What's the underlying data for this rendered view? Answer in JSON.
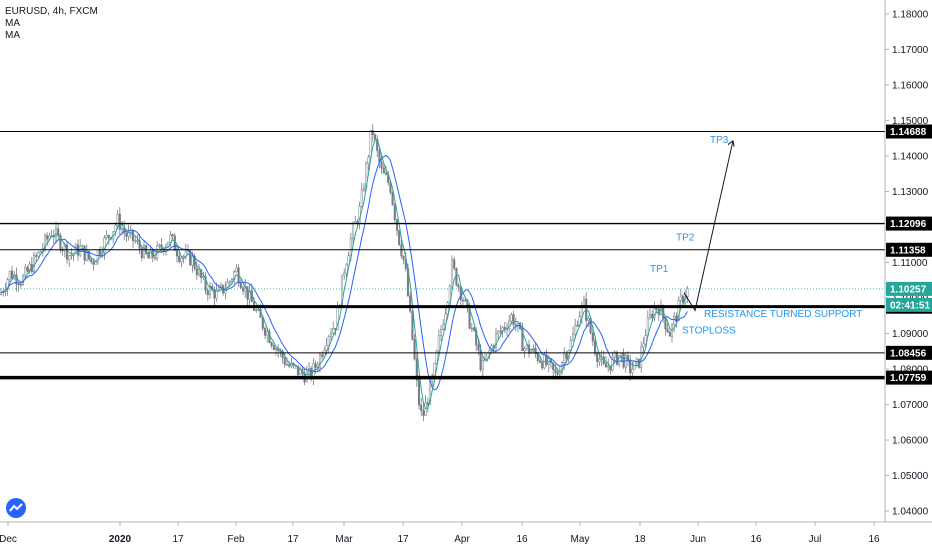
{
  "legend": {
    "symbol": "EURUSD, 4h, FXCM",
    "ma1": "MA",
    "ma2": "MA"
  },
  "colors": {
    "candle": "#787b86",
    "ma_fast": "#26a69a",
    "ma_slow": "#2962ff",
    "level": "#000000",
    "annotation": "#2196f3",
    "price_line": "#26a69a"
  },
  "chart_data": {
    "type": "candlestick",
    "symbol": "EURUSD",
    "timeframe": "4h",
    "ylim": [
      1.0375,
      1.1825
    ],
    "y_ticks": [
      "1.18000",
      "1.17000",
      "1.16000",
      "1.15000",
      "1.14000",
      "1.13000",
      "1.12000",
      "1.11000",
      "1.10000",
      "1.09000",
      "1.08000",
      "1.07000",
      "1.06000",
      "1.05000",
      "1.04000"
    ],
    "x_ticks": [
      "Dec",
      "2020",
      "17",
      "Feb",
      "17",
      "Mar",
      "17",
      "Apr",
      "16",
      "May",
      "18",
      "Jun",
      "16",
      "Jul",
      "16"
    ],
    "price_path": [
      [
        0,
        1.101
      ],
      [
        10,
        1.107
      ],
      [
        22,
        1.105
      ],
      [
        38,
        1.112
      ],
      [
        52,
        1.119
      ],
      [
        62,
        1.115
      ],
      [
        70,
        1.112
      ],
      [
        80,
        1.114
      ],
      [
        92,
        1.11
      ],
      [
        102,
        1.115
      ],
      [
        110,
        1.118
      ],
      [
        118,
        1.122
      ],
      [
        125,
        1.118
      ],
      [
        135,
        1.116
      ],
      [
        148,
        1.111
      ],
      [
        158,
        1.113
      ],
      [
        170,
        1.117
      ],
      [
        180,
        1.112
      ],
      [
        192,
        1.111
      ],
      [
        205,
        1.103
      ],
      [
        218,
        1.101
      ],
      [
        228,
        1.104
      ],
      [
        236,
        1.108
      ],
      [
        246,
        1.102
      ],
      [
        258,
        1.095
      ],
      [
        272,
        1.088
      ],
      [
        288,
        1.081
      ],
      [
        300,
        1.079
      ],
      [
        310,
        1.078
      ],
      [
        318,
        1.082
      ],
      [
        328,
        1.09
      ],
      [
        336,
        1.093
      ],
      [
        344,
        1.108
      ],
      [
        352,
        1.118
      ],
      [
        360,
        1.125
      ],
      [
        367,
        1.138
      ],
      [
        372,
        1.148
      ],
      [
        376,
        1.142
      ],
      [
        382,
        1.135
      ],
      [
        390,
        1.132
      ],
      [
        398,
        1.118
      ],
      [
        405,
        1.109
      ],
      [
        410,
        1.095
      ],
      [
        414,
        1.084
      ],
      [
        418,
        1.072
      ],
      [
        422,
        1.066
      ],
      [
        428,
        1.072
      ],
      [
        434,
        1.079
      ],
      [
        440,
        1.09
      ],
      [
        446,
        1.098
      ],
      [
        452,
        1.109
      ],
      [
        458,
        1.104
      ],
      [
        464,
        1.099
      ],
      [
        470,
        1.093
      ],
      [
        476,
        1.087
      ],
      [
        482,
        1.08
      ],
      [
        488,
        1.084
      ],
      [
        496,
        1.089
      ],
      [
        504,
        1.092
      ],
      [
        512,
        1.095
      ],
      [
        518,
        1.091
      ],
      [
        524,
        1.086
      ],
      [
        532,
        1.085
      ],
      [
        540,
        1.083
      ],
      [
        548,
        1.081
      ],
      [
        556,
        1.078
      ],
      [
        564,
        1.084
      ],
      [
        572,
        1.088
      ],
      [
        578,
        1.095
      ],
      [
        584,
        1.098
      ],
      [
        590,
        1.091
      ],
      [
        596,
        1.085
      ],
      [
        604,
        1.08
      ],
      [
        612,
        1.082
      ],
      [
        620,
        1.084
      ],
      [
        630,
        1.08
      ],
      [
        638,
        1.081
      ],
      [
        646,
        1.091
      ],
      [
        652,
        1.096
      ],
      [
        658,
        1.098
      ],
      [
        664,
        1.094
      ],
      [
        670,
        1.09
      ],
      [
        676,
        1.095
      ],
      [
        682,
        1.1
      ],
      [
        688,
        1.1025
      ]
    ],
    "levels": [
      {
        "price": "1.14688",
        "value": 1.14688,
        "weight": 1
      },
      {
        "price": "1.12096",
        "value": 1.12096,
        "weight": 1.3
      },
      {
        "price": "1.11358",
        "value": 1.11358,
        "weight": 1
      },
      {
        "price": "1.09756",
        "value": 1.09756,
        "weight": 3
      },
      {
        "price": "1.08456",
        "value": 1.08456,
        "weight": 1
      },
      {
        "price": "1.07759",
        "value": 1.07759,
        "weight": 3.5
      }
    ],
    "current_price": {
      "price": "1.10257",
      "value": 1.10257,
      "countdown": "02:41:51"
    },
    "annotations": [
      {
        "text": "TP3",
        "price": 1.1448
      },
      {
        "text": "TP2",
        "price": 1.1173
      },
      {
        "text": "TP1",
        "price": 1.1085
      },
      {
        "text": "RESISTANCE TURNED SUPPORT",
        "price": 1.0958
      },
      {
        "text": "STOPLOSS",
        "price": 1.0912
      }
    ],
    "projection": {
      "from_price": 1.0965,
      "to_price": 1.1443
    }
  }
}
